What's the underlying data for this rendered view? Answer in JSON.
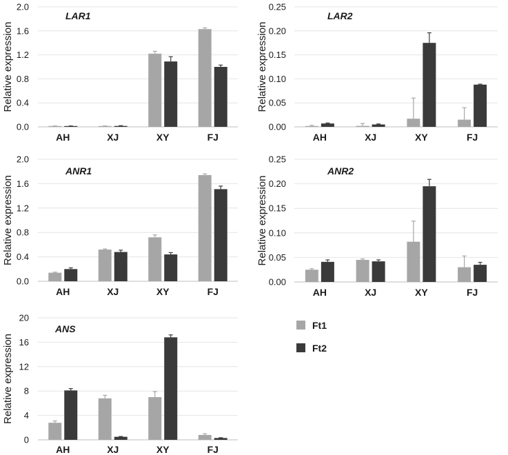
{
  "legend": [
    {
      "name": "Ft1",
      "color": "#a6a6a6"
    },
    {
      "name": "Ft2",
      "color": "#3a3a3a"
    }
  ],
  "chart_data": [
    {
      "type": "bar",
      "title": "LAR1",
      "ylabel": "Relative expression",
      "categories": [
        "AH",
        "XJ",
        "XY",
        "FJ"
      ],
      "ylim": [
        0,
        2.0
      ],
      "yticks": [
        "0.0",
        "0.4",
        "0.8",
        "1.2",
        "1.6",
        "2.0"
      ],
      "series": [
        {
          "name": "Ft1",
          "values": [
            0.01,
            0.01,
            1.22,
            1.63
          ],
          "errors": [
            0.005,
            0.005,
            0.04,
            0.02
          ]
        },
        {
          "name": "Ft2",
          "values": [
            0.01,
            0.015,
            1.09,
            1.0
          ],
          "errors": [
            0.005,
            0.005,
            0.08,
            0.03
          ]
        }
      ]
    },
    {
      "type": "bar",
      "title": "LAR2",
      "ylabel": "Relative expression",
      "categories": [
        "AH",
        "XJ",
        "XY",
        "FJ"
      ],
      "ylim": [
        0,
        0.25
      ],
      "yticks": [
        "0.00",
        "0.05",
        "0.10",
        "0.15",
        "0.20",
        "0.25"
      ],
      "series": [
        {
          "name": "Ft1",
          "values": [
            0.001,
            0.002,
            0.017,
            0.015
          ],
          "errors": [
            0.002,
            0.005,
            0.043,
            0.025
          ]
        },
        {
          "name": "Ft2",
          "values": [
            0.007,
            0.005,
            0.175,
            0.088
          ],
          "errors": [
            0.001,
            0.001,
            0.021,
            0.001
          ]
        }
      ]
    },
    {
      "type": "bar",
      "title": "ANR1",
      "ylabel": "Relative expression",
      "categories": [
        "AH",
        "XJ",
        "XY",
        "FJ"
      ],
      "ylim": [
        0,
        2.0
      ],
      "yticks": [
        "0.0",
        "0.4",
        "0.8",
        "1.2",
        "1.6",
        "2.0"
      ],
      "series": [
        {
          "name": "Ft1",
          "values": [
            0.14,
            0.52,
            0.72,
            1.74
          ],
          "errors": [
            0.01,
            0.01,
            0.04,
            0.02
          ]
        },
        {
          "name": "Ft2",
          "values": [
            0.2,
            0.48,
            0.44,
            1.51
          ],
          "errors": [
            0.02,
            0.03,
            0.03,
            0.05
          ]
        }
      ]
    },
    {
      "type": "bar",
      "title": "ANR2",
      "ylabel": "Relative expression",
      "categories": [
        "AH",
        "XJ",
        "XY",
        "FJ"
      ],
      "ylim": [
        0,
        0.25
      ],
      "yticks": [
        "0.00",
        "0.05",
        "0.10",
        "0.15",
        "0.20",
        "0.25"
      ],
      "series": [
        {
          "name": "Ft1",
          "values": [
            0.025,
            0.045,
            0.082,
            0.03
          ],
          "errors": [
            0.002,
            0.002,
            0.042,
            0.023
          ]
        },
        {
          "name": "Ft2",
          "values": [
            0.041,
            0.042,
            0.195,
            0.035
          ],
          "errors": [
            0.004,
            0.003,
            0.014,
            0.005
          ]
        }
      ]
    },
    {
      "type": "bar",
      "title": "ANS",
      "ylabel": "Relative expression",
      "categories": [
        "AH",
        "XJ",
        "XY",
        "FJ"
      ],
      "ylim": [
        0,
        20
      ],
      "yticks": [
        "0",
        "4",
        "8",
        "12",
        "16",
        "20"
      ],
      "series": [
        {
          "name": "Ft1",
          "values": [
            2.8,
            6.8,
            7.0,
            0.8
          ],
          "errors": [
            0.3,
            0.5,
            0.9,
            0.2
          ]
        },
        {
          "name": "Ft2",
          "values": [
            8.1,
            0.5,
            16.8,
            0.3
          ],
          "errors": [
            0.3,
            0.05,
            0.4,
            0.05
          ]
        }
      ]
    }
  ]
}
